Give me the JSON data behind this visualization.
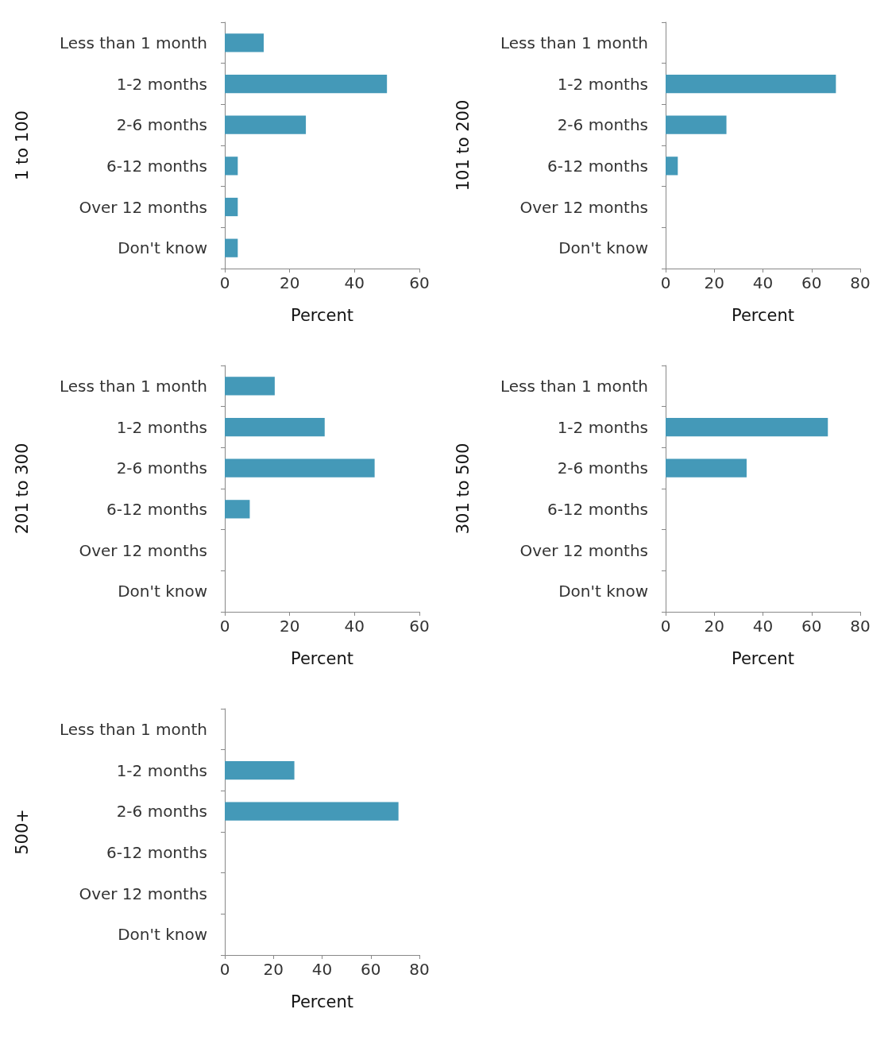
{
  "chart_data": [
    {
      "type": "bar",
      "orientation": "horizontal",
      "ylabel": "1 to 100",
      "xlabel": "Percent",
      "categories": [
        "Less than 1 month",
        "1-2 months",
        "2-6 months",
        "6-12 months",
        "Over 12 months",
        "Don't know"
      ],
      "series": [
        {
          "color": "#4499b8",
          "values": [
            12,
            50,
            25,
            4,
            4,
            4
          ]
        }
      ],
      "xlim": [
        0,
        60
      ],
      "xticks": [
        0,
        20,
        40,
        60
      ],
      "grid": false
    },
    {
      "type": "bar",
      "orientation": "horizontal",
      "ylabel": "101 to 200",
      "xlabel": "Percent",
      "categories": [
        "Less than 1 month",
        "1-2 months",
        "2-6 months",
        "6-12 months",
        "Over 12 months",
        "Don't know"
      ],
      "series": [
        {
          "color": "#4499b8",
          "values": [
            0,
            70,
            25,
            5,
            0,
            0
          ]
        }
      ],
      "xlim": [
        0,
        80
      ],
      "xticks": [
        0,
        20,
        40,
        60,
        80
      ],
      "grid": false
    },
    {
      "type": "bar",
      "orientation": "horizontal",
      "ylabel": "201 to 300",
      "xlabel": "Percent",
      "categories": [
        "Less than 1 month",
        "1-2 months",
        "2-6 months",
        "6-12 months",
        "Over 12 months",
        "Don't know"
      ],
      "series": [
        {
          "color": "#4499b8",
          "values": [
            15.4,
            30.8,
            46.2,
            7.7,
            0,
            0
          ]
        }
      ],
      "xlim": [
        0,
        60
      ],
      "xticks": [
        0,
        20,
        40,
        60
      ],
      "grid": false
    },
    {
      "type": "bar",
      "orientation": "horizontal",
      "ylabel": "301 to 500",
      "xlabel": "Percent",
      "categories": [
        "Less than 1 month",
        "1-2 months",
        "2-6 months",
        "6-12 months",
        "Over 12 months",
        "Don't know"
      ],
      "series": [
        {
          "color": "#4499b8",
          "values": [
            0,
            66.7,
            33.3,
            0,
            0,
            0
          ]
        }
      ],
      "xlim": [
        0,
        80
      ],
      "xticks": [
        0,
        20,
        40,
        60,
        80
      ],
      "grid": false
    },
    {
      "type": "bar",
      "orientation": "horizontal",
      "ylabel": "500+",
      "xlabel": "Percent",
      "categories": [
        "Less than 1 month",
        "1-2 months",
        "2-6 months",
        "6-12 months",
        "Over 12 months",
        "Don't know"
      ],
      "series": [
        {
          "color": "#4499b8",
          "values": [
            0,
            28.6,
            71.4,
            0,
            0,
            0
          ]
        }
      ],
      "xlim": [
        0,
        80
      ],
      "xticks": [
        0,
        20,
        40,
        60,
        80
      ],
      "grid": false
    }
  ]
}
